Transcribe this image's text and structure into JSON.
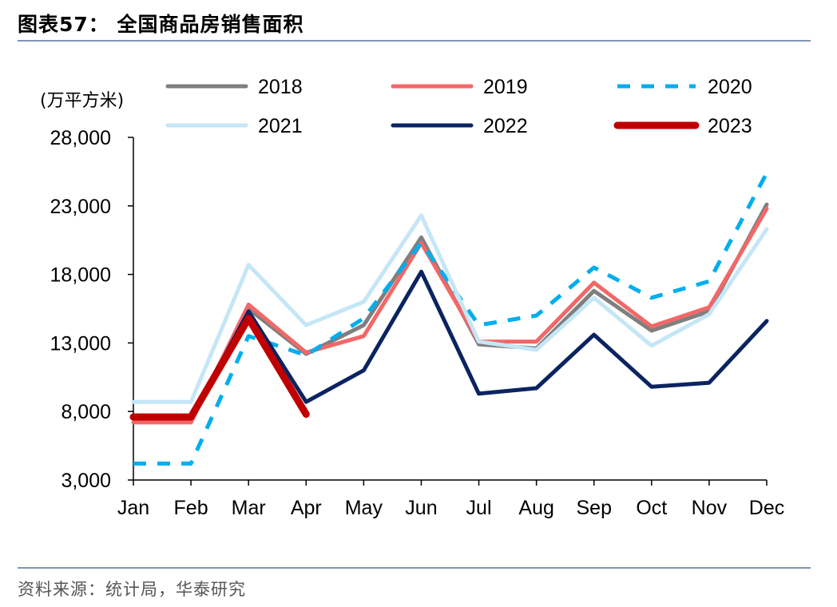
{
  "header": {
    "title": "图表57： 全国商品房销售面积"
  },
  "footer": {
    "source": "资料来源：统计局，华泰研究"
  },
  "chart_data": {
    "type": "line",
    "title": "全国商品房销售面积",
    "unit": "(万平方米)",
    "ylim": [
      3000,
      28000
    ],
    "yticks": [
      3000,
      8000,
      13000,
      18000,
      23000,
      28000
    ],
    "ytick_labels": [
      "3,000",
      "8,000",
      "13,000",
      "18,000",
      "23,000",
      "28,000"
    ],
    "categories": [
      "Jan",
      "Feb",
      "Mar",
      "Apr",
      "May",
      "Jun",
      "Jul",
      "Aug",
      "Sep",
      "Oct",
      "Nov",
      "Dec"
    ],
    "legend_position": "top",
    "grid": false,
    "series": [
      {
        "name": "2018",
        "color": "#7f7f7f",
        "style": "solid",
        "width": 5,
        "values": [
          7500,
          7500,
          15500,
          12200,
          14300,
          20700,
          12900,
          12600,
          16800,
          13900,
          15300,
          23100
        ]
      },
      {
        "name": "2019",
        "color": "#f26767",
        "style": "solid",
        "width": 5,
        "values": [
          7200,
          7200,
          15800,
          12300,
          13500,
          20300,
          13100,
          13100,
          17400,
          14200,
          15600,
          22800
        ]
      },
      {
        "name": "2020",
        "color": "#00aeef",
        "style": "dashed",
        "width": 5,
        "values": [
          4200,
          4200,
          13500,
          12100,
          14800,
          20300,
          14300,
          15000,
          18500,
          16300,
          17500,
          25400
        ]
      },
      {
        "name": "2021",
        "color": "#c5e6f6",
        "style": "solid",
        "width": 5,
        "values": [
          8700,
          8700,
          18700,
          14300,
          16000,
          22300,
          13100,
          12500,
          16300,
          12800,
          15100,
          21300
        ]
      },
      {
        "name": "2022",
        "color": "#0b2461",
        "style": "solid",
        "width": 5,
        "values": [
          7500,
          7500,
          15300,
          8700,
          11000,
          18200,
          9300,
          9700,
          13600,
          9800,
          10100,
          14600
        ]
      },
      {
        "name": "2023",
        "color": "#c00000",
        "style": "solid",
        "width": 9,
        "values": [
          7600,
          7600,
          14800,
          7800,
          null,
          null,
          null,
          null,
          null,
          null,
          null,
          null
        ]
      }
    ]
  }
}
